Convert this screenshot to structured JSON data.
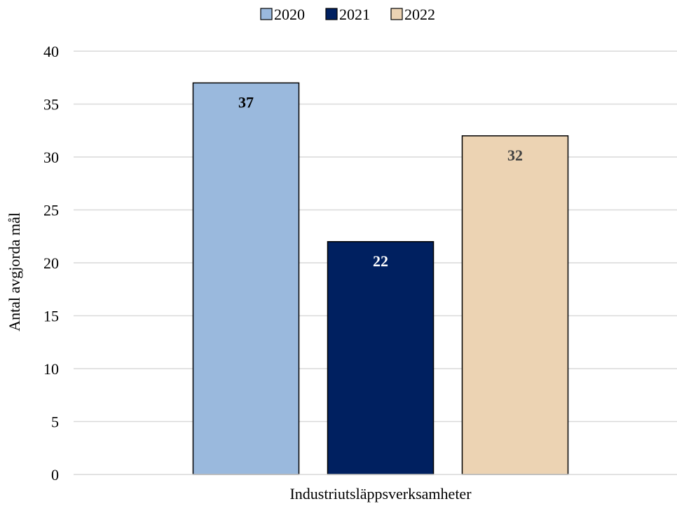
{
  "chart_data": {
    "type": "bar",
    "categories": [
      "Industriutsläppsverksamheter"
    ],
    "series": [
      {
        "name": "2020",
        "values": [
          37
        ],
        "color": "#9ab9dd",
        "label_color": "#000000"
      },
      {
        "name": "2021",
        "values": [
          22
        ],
        "color": "#002060",
        "label_color": "#ffffff"
      },
      {
        "name": "2022",
        "values": [
          32
        ],
        "color": "#ecd3b3",
        "label_color": "#404040"
      }
    ],
    "title": "",
    "xlabel": "Industriutsläppsverksamheter",
    "ylabel": "Antal avgjorda mål",
    "ylim": [
      0,
      40
    ],
    "yticks": [
      0,
      5,
      10,
      15,
      20,
      25,
      30,
      35,
      40
    ],
    "grid": true,
    "legend_position": "top",
    "data_labels": true
  }
}
